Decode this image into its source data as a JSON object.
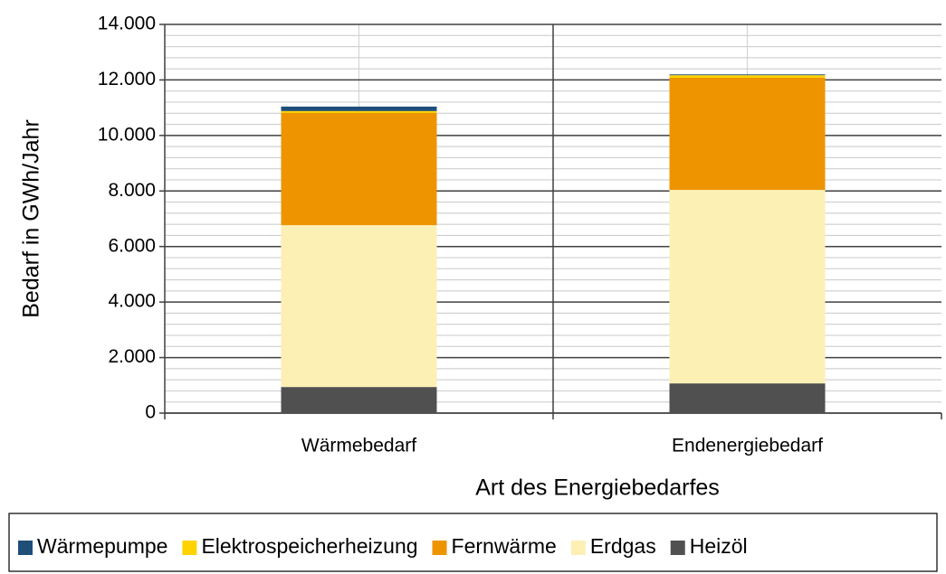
{
  "chart_data": {
    "type": "stacked_bar",
    "categories": [
      "Wärmebedarf",
      "Endenergiebedarf"
    ],
    "series": [
      {
        "name": "Wärmepumpe",
        "color": "#1f4e79",
        "values": [
          160,
          30
        ]
      },
      {
        "name": "Elektrospeicherheizung",
        "color": "#ffd200",
        "values": [
          70,
          90
        ]
      },
      {
        "name": "Fernwärme",
        "color": "#ed9400",
        "values": [
          4040,
          4040
        ]
      },
      {
        "name": "Erdgas",
        "color": "#fdf0b4",
        "values": [
          5830,
          6970
        ]
      },
      {
        "name": "Heizöl",
        "color": "#505050",
        "values": [
          940,
          1070
        ]
      }
    ],
    "ylim": [
      0,
      14000
    ],
    "yticks": [
      0,
      {
        "value": 2000,
        "label": "2.000"
      },
      {
        "value": 4000,
        "label": "4.000"
      },
      {
        "value": 6000,
        "label": "6.000"
      },
      {
        "value": 8000,
        "label": "8.000"
      },
      {
        "value": 10000,
        "label": "10.000"
      },
      {
        "value": 12000,
        "label": "12.000"
      },
      {
        "value": 14000,
        "label": "14.000"
      }
    ],
    "ylabel": "Bedarf in GWh/Jahr",
    "xlabel": "Art des Energiebedarfes",
    "grid": true,
    "legend": "bottom"
  }
}
